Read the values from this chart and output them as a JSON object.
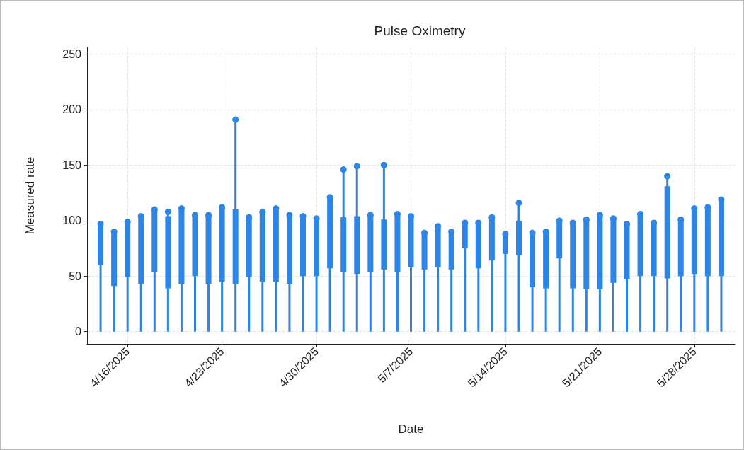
{
  "chart_data": {
    "type": "lollipop",
    "title": "Pulse Oximetry",
    "xlabel": "Date",
    "ylabel": "Measured rate",
    "x": [
      "2025-04-14",
      "2025-04-15",
      "2025-04-16",
      "2025-04-17",
      "2025-04-18",
      "2025-04-19",
      "2025-04-20",
      "2025-04-21",
      "2025-04-22",
      "2025-04-23",
      "2025-04-24",
      "2025-04-25",
      "2025-04-26",
      "2025-04-27",
      "2025-04-28",
      "2025-04-29",
      "2025-04-30",
      "2025-05-01",
      "2025-05-02",
      "2025-05-03",
      "2025-05-04",
      "2025-05-05",
      "2025-05-06",
      "2025-05-07",
      "2025-05-08",
      "2025-05-09",
      "2025-05-10",
      "2025-05-11",
      "2025-05-12",
      "2025-05-13",
      "2025-05-14",
      "2025-05-15",
      "2025-05-16",
      "2025-05-17",
      "2025-05-18",
      "2025-05-19",
      "2025-05-20",
      "2025-05-21",
      "2025-05-22",
      "2025-05-23",
      "2025-05-24",
      "2025-05-25",
      "2025-05-26",
      "2025-05-27",
      "2025-05-28",
      "2025-05-29",
      "2025-05-30"
    ],
    "series": [
      {
        "color": "#2c85e8",
        "values": [
          97,
          90,
          99,
          104,
          110,
          108,
          111,
          105,
          105,
          112,
          191,
          103,
          108,
          111,
          105,
          104,
          102,
          121,
          146,
          149,
          105,
          150,
          106,
          104,
          89,
          95,
          90,
          98,
          98,
          103,
          88,
          116,
          89,
          90,
          100,
          98,
          101,
          105,
          102,
          97,
          106,
          98,
          140,
          101,
          111,
          112,
          119
        ]
      },
      {
        "type": "bar",
        "color": "#2c85e8",
        "base": [
          60,
          41,
          49,
          43,
          54,
          39,
          43,
          50,
          43,
          45,
          43,
          49,
          45,
          45,
          43,
          50,
          50,
          57,
          54,
          52,
          54,
          56,
          54,
          58,
          56,
          58,
          56,
          75,
          57,
          64,
          70,
          69,
          40,
          39,
          66,
          39,
          38,
          38,
          44,
          47,
          50,
          50,
          48,
          50,
          52,
          50,
          50
        ],
        "values": [
          37,
          49,
          50,
          61,
          56,
          65,
          68,
          55,
          62,
          67,
          67,
          54,
          63,
          66,
          62,
          54,
          52,
          64,
          49,
          52,
          51,
          45,
          52,
          46,
          33,
          37,
          34,
          23,
          41,
          39,
          18,
          31,
          49,
          51,
          34,
          59,
          63,
          67,
          58,
          50,
          56,
          48,
          83,
          51,
          59,
          62,
          69
        ]
      }
    ],
    "xlim": [
      "2025-04-13",
      "2025-05-31"
    ],
    "xticks": [
      {
        "value": "2025-04-16",
        "label": "4/16/2025"
      },
      {
        "value": "2025-04-23",
        "label": "4/23/2025"
      },
      {
        "value": "2025-04-30",
        "label": "4/30/2025"
      },
      {
        "value": "2025-05-07",
        "label": "5/7/2025"
      },
      {
        "value": "2025-05-14",
        "label": "5/14/2025"
      },
      {
        "value": "2025-05-21",
        "label": "5/21/2025"
      },
      {
        "value": "2025-05-28",
        "label": "5/28/2025"
      }
    ],
    "ylim": [
      -11,
      256
    ],
    "yticks": [
      0,
      50,
      100,
      150,
      200,
      250
    ],
    "grid": true,
    "marker": "circle"
  }
}
